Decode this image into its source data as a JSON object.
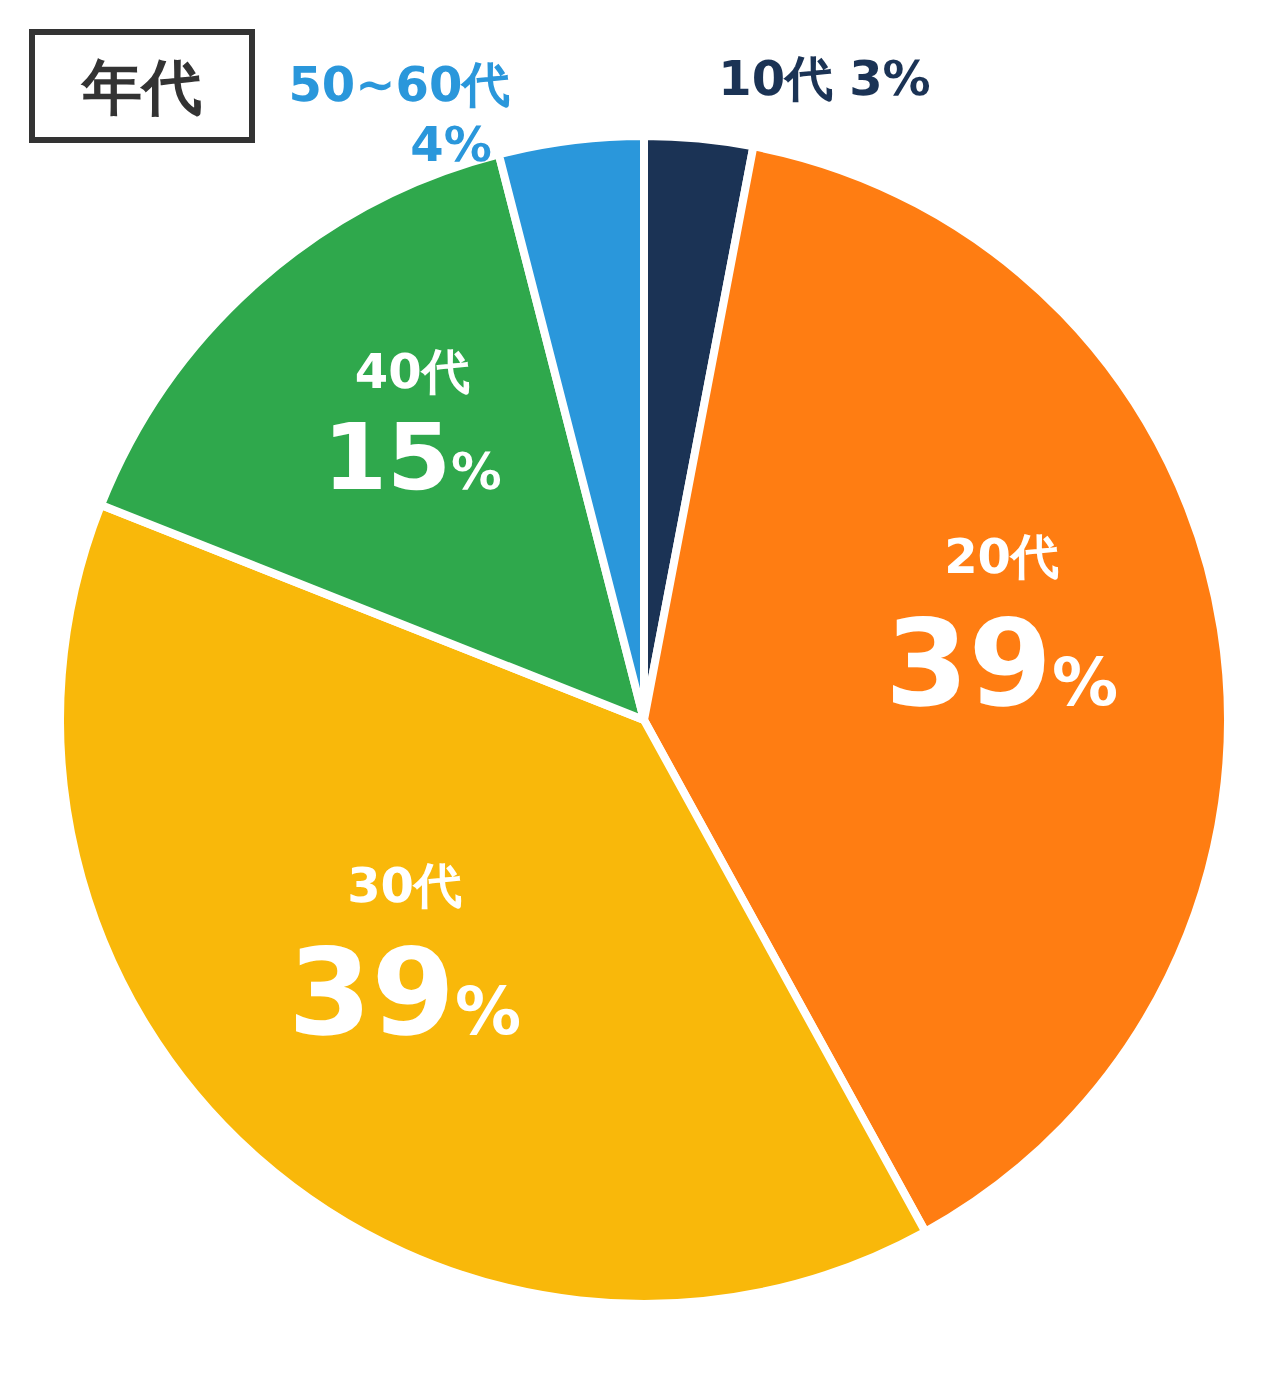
{
  "chart_data": {
    "type": "pie",
    "title": "年代",
    "categories": [
      "10代",
      "20代",
      "30代",
      "40代",
      "50~60代"
    ],
    "values": [
      3,
      39,
      39,
      15,
      4
    ],
    "colors": [
      "#1b3355",
      "#ff7d12",
      "#f9b80a",
      "#2fa84c",
      "#2a97db"
    ],
    "value_labels": [
      "3%",
      "39%",
      "39%",
      "15%",
      "4%"
    ]
  }
}
